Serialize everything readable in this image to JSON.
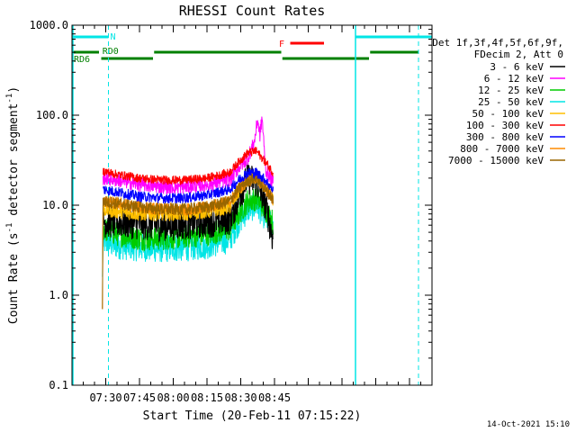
{
  "chart_data": {
    "type": "line",
    "title": "RHESSI Count Rates",
    "xlabel": "Start Time (20-Feb-11 07:15:22)",
    "ylabel": "Count Rate (s",
    "ylabel_sup": "-1",
    "ylabel_mid": " detector segment",
    "ylabel_end": ")",
    "yscale": "log",
    "ylim": [
      0.1,
      1000
    ],
    "xlim_min": [
      0,
      160
    ],
    "x_tick_minutes": [
      15,
      30,
      45,
      60,
      75,
      90
    ],
    "x_tick_labels": [
      "07:30",
      "07:45",
      "08:00",
      "08:15",
      "08:30",
      "08:45"
    ],
    "y_tick_values": [
      0.1,
      1,
      10,
      100,
      1000
    ],
    "y_tick_labels": [
      "0.1",
      "1.0",
      "10.0",
      "100.0",
      "1000.0"
    ],
    "legend_header": [
      "Det 1f,3f,4f,5f,6f,9f,",
      "FDecim 2, Att 0"
    ],
    "legend_position": "right",
    "data_window_min": [
      13.5,
      90
    ],
    "series": [
      {
        "name": "3 - 6 keV",
        "color": "#000000",
        "t": [
          13.5,
          20,
          30,
          40,
          50,
          60,
          70,
          74,
          78,
          82,
          85,
          87,
          89,
          90
        ],
        "v": [
          6.5,
          6.5,
          6.2,
          6.0,
          6.2,
          6.5,
          7.0,
          12,
          20,
          18,
          12,
          8,
          4.5,
          3.8
        ]
      },
      {
        "name": "6 - 12 keV",
        "color": "#ff00ff",
        "t": [
          13.5,
          20,
          30,
          40,
          50,
          60,
          70,
          74,
          78,
          81,
          82.5,
          83.5,
          84.5,
          86,
          90
        ],
        "v": [
          20,
          19,
          17,
          16,
          16,
          17,
          19,
          26,
          33,
          50,
          90,
          60,
          95,
          25,
          17
        ]
      },
      {
        "name": "12 - 25 keV",
        "color": "#00cc00",
        "t": [
          13.5,
          20,
          30,
          40,
          50,
          60,
          70,
          74,
          78,
          82,
          86,
          90
        ],
        "v": [
          5.5,
          4.8,
          4.3,
          4.3,
          4.5,
          4.8,
          5.5,
          8,
          11,
          12,
          9,
          6
        ]
      },
      {
        "name": "25 - 50 keV",
        "color": "#00e5e5",
        "t": [
          13.5,
          20,
          30,
          40,
          50,
          60,
          70,
          74,
          78,
          82,
          86,
          90
        ],
        "v": [
          4.0,
          3.6,
          3.4,
          3.3,
          3.4,
          3.6,
          4.2,
          6.5,
          9,
          10,
          7.5,
          5
        ]
      },
      {
        "name": "50 - 100 keV",
        "color": "#ffbf00",
        "t": [
          13.5,
          20,
          30,
          40,
          50,
          60,
          70,
          74,
          78,
          82,
          86,
          90
        ],
        "v": [
          9,
          8.5,
          8,
          8,
          8,
          8.5,
          9.5,
          14,
          19,
          21,
          16,
          11
        ]
      },
      {
        "name": "100 - 300 keV",
        "color": "#ff0000",
        "t": [
          13.5,
          20,
          30,
          40,
          50,
          60,
          70,
          74,
          78,
          82,
          86,
          90
        ],
        "v": [
          24,
          22,
          20,
          19,
          19,
          20,
          23,
          30,
          38,
          40,
          30,
          22
        ]
      },
      {
        "name": "300 - 800 keV",
        "color": "#0000ff",
        "t": [
          13.5,
          20,
          30,
          40,
          50,
          60,
          70,
          74,
          78,
          82,
          86,
          90
        ],
        "v": [
          15,
          14,
          12.5,
          12,
          12,
          13,
          15,
          19,
          23,
          23,
          19,
          14
        ]
      },
      {
        "name": "800 - 7000 keV",
        "color": "#ff8c00",
        "t": [
          13.5,
          20,
          30,
          40,
          50,
          60,
          70,
          74,
          78,
          82,
          86,
          90
        ],
        "v": [
          11,
          10.5,
          9.5,
          9,
          9,
          9.5,
          11,
          15,
          19,
          20,
          15,
          11
        ]
      },
      {
        "name": "7000 - 15000 keV",
        "color": "#996600",
        "t": [
          13.5,
          20,
          30,
          40,
          50,
          60,
          70,
          74,
          78,
          82,
          86,
          90
        ],
        "v": [
          11,
          10.5,
          9.5,
          9,
          9,
          9.5,
          11,
          15,
          19,
          20,
          15,
          11
        ]
      }
    ],
    "annotations": {
      "N_label": "N",
      "F_label": "F",
      "RD0_label": "RD0",
      "RD6_label": "RD6"
    },
    "footer": "14-Oct-2021 15:10"
  }
}
